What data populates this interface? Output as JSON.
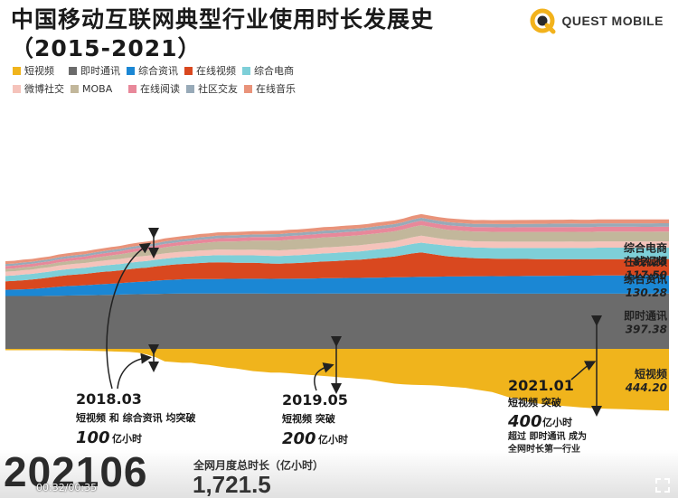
{
  "title": {
    "line1": "中国移动互联网典型行业使用时长发展史",
    "line2": "（2015-2021）"
  },
  "brand": {
    "name": "QUEST MOBILE",
    "color": "#f2b21c"
  },
  "legend": [
    {
      "label": "短视频",
      "color": "#f0b41c"
    },
    {
      "label": "即时通讯",
      "color": "#6b6b6b"
    },
    {
      "label": "综合资讯",
      "color": "#1b87d4"
    },
    {
      "label": "在线视频",
      "color": "#d9481f"
    },
    {
      "label": "综合电商",
      "color": "#7ecfd8"
    },
    {
      "label": "微博社交",
      "color": "#f5c3bb"
    },
    {
      "label": "MOBA",
      "color": "#c2b79b"
    },
    {
      "label": "在线阅读",
      "color": "#e8889a"
    },
    {
      "label": "社区交友",
      "color": "#98aab8"
    },
    {
      "label": "在线音乐",
      "color": "#e9937a"
    }
  ],
  "chart_data": {
    "type": "area",
    "stacked": true,
    "x": [
      0,
      1,
      2,
      3,
      4,
      5,
      6,
      7,
      8,
      9,
      10,
      11,
      12,
      13,
      14,
      15,
      16,
      17,
      18,
      19,
      20,
      21,
      22,
      23,
      24,
      25,
      26,
      27,
      28,
      29,
      30,
      31,
      32,
      33,
      34,
      35,
      36,
      37,
      38,
      39,
      40,
      41,
      42,
      43,
      44,
      45,
      46,
      47,
      48,
      49,
      50,
      51,
      52,
      53,
      54,
      55,
      56,
      57,
      58,
      59,
      60,
      61,
      62,
      63,
      64,
      65,
      66,
      67,
      68,
      69,
      70,
      71,
      72,
      73,
      74,
      75
    ],
    "series": [
      {
        "name": "短视频",
        "color": "#f0b41c",
        "values": [
          10,
          10,
          10,
          10,
          10,
          10,
          10,
          11,
          12,
          13,
          14,
          16,
          18,
          20,
          22,
          28,
          40,
          60,
          90,
          95,
          100,
          100,
          110,
          115,
          125,
          135,
          140,
          150,
          160,
          165,
          170,
          170,
          175,
          180,
          185,
          190,
          195,
          200,
          205,
          210,
          215,
          220,
          230,
          240,
          250,
          255,
          258,
          260,
          262,
          265,
          270,
          275,
          280,
          290,
          300,
          310,
          330,
          350,
          360,
          380,
          390,
          400,
          405,
          410,
          415,
          420,
          425,
          428,
          430,
          432,
          434,
          436,
          438,
          440,
          442,
          444.2
        ]
      },
      {
        "name": "即时通讯",
        "color": "#6b6b6b",
        "values": [
          380,
          380,
          380,
          380,
          380,
          381,
          382,
          383,
          384,
          385,
          386,
          387,
          388,
          390,
          392,
          393,
          394,
          395,
          396,
          397,
          398,
          398,
          398,
          398,
          398,
          398,
          398,
          398,
          398,
          398,
          397,
          397,
          397,
          397,
          397,
          397,
          398,
          398,
          398,
          398,
          398,
          398,
          398,
          398,
          398,
          398,
          398,
          398,
          398,
          398,
          398,
          398,
          398,
          398,
          398,
          398,
          397,
          397,
          397,
          397,
          397,
          397,
          397,
          397,
          397,
          397,
          397,
          397,
          397,
          397,
          397,
          397,
          397,
          397,
          397.38,
          397.38
        ]
      },
      {
        "name": "综合资讯",
        "color": "#1b87d4",
        "values": [
          45,
          46,
          48,
          50,
          55,
          60,
          65,
          68,
          70,
          72,
          75,
          78,
          80,
          82,
          85,
          88,
          90,
          95,
          98,
          100,
          102,
          103,
          104,
          104,
          104,
          105,
          105,
          106,
          106,
          106,
          106,
          107,
          107,
          108,
          108,
          109,
          110,
          110,
          111,
          112,
          112,
          113,
          114,
          115,
          116,
          117,
          118,
          120,
          120,
          121,
          122,
          122,
          123,
          124,
          124,
          125,
          125,
          126,
          126,
          127,
          127,
          128,
          128,
          128,
          129,
          129,
          129,
          130,
          130,
          130,
          130,
          130,
          130,
          130,
          130.28,
          130.28
        ]
      },
      {
        "name": "在线视频",
        "color": "#d9481f",
        "values": [
          60,
          62,
          65,
          68,
          70,
          72,
          75,
          78,
          80,
          82,
          85,
          88,
          90,
          92,
          95,
          98,
          100,
          102,
          105,
          108,
          110,
          112,
          115,
          118,
          120,
          118,
          116,
          115,
          114,
          112,
          110,
          108,
          110,
          112,
          115,
          118,
          120,
          122,
          125,
          128,
          130,
          135,
          140,
          145,
          150,
          160,
          170,
          175,
          165,
          155,
          145,
          140,
          135,
          130,
          128,
          126,
          125,
          124,
          123,
          122,
          121,
          120,
          120,
          119,
          119,
          118,
          118,
          118,
          118,
          118,
          118,
          118,
          117.5,
          117.5,
          117.5,
          117.5
        ]
      },
      {
        "name": "综合电商",
        "color": "#7ecfd8",
        "values": [
          40,
          40,
          41,
          41,
          42,
          42,
          43,
          43,
          44,
          44,
          45,
          45,
          46,
          46,
          47,
          47,
          48,
          48,
          49,
          49,
          50,
          50,
          51,
          51,
          52,
          52,
          53,
          53,
          54,
          54,
          55,
          55,
          56,
          56,
          57,
          57,
          58,
          58,
          59,
          59,
          60,
          61,
          62,
          63,
          64,
          66,
          68,
          70,
          72,
          74,
          76,
          76,
          76,
          76,
          77,
          77,
          78,
          78,
          79,
          79,
          80,
          80,
          80,
          81,
          81,
          81,
          81,
          82,
          82,
          82,
          82,
          82,
          82.28,
          82.28,
          82.28,
          82.28
        ]
      },
      {
        "name": "微博社交",
        "color": "#f5c3bb",
        "values": [
          30,
          30,
          31,
          31,
          32,
          32,
          33,
          33,
          34,
          34,
          35,
          35,
          36,
          36,
          36,
          37,
          37,
          37,
          38,
          38,
          38,
          39,
          39,
          39,
          40,
          40,
          40,
          40,
          41,
          41,
          41,
          41,
          42,
          42,
          42,
          42,
          43,
          43,
          43,
          43,
          44,
          44,
          44,
          44,
          45,
          46,
          48,
          50,
          48,
          46,
          45,
          45,
          45,
          45,
          45,
          45,
          45,
          45,
          45,
          45,
          45,
          45,
          45,
          45,
          45,
          45,
          45,
          45,
          45,
          45,
          45,
          45,
          45,
          45,
          45,
          45
        ]
      },
      {
        "name": "MOBA",
        "color": "#c2b79b",
        "values": [
          20,
          20,
          21,
          21,
          22,
          22,
          23,
          24,
          25,
          26,
          28,
          30,
          32,
          34,
          36,
          38,
          40,
          42,
          44,
          46,
          48,
          50,
          52,
          54,
          56,
          58,
          60,
          62,
          64,
          66,
          68,
          70,
          72,
          72,
          72,
          72,
          72,
          72,
          72,
          72,
          72,
          72,
          72,
          72,
          72,
          72,
          74,
          76,
          74,
          72,
          70,
          70,
          70,
          70,
          70,
          70,
          70,
          70,
          70,
          70,
          70,
          70,
          70,
          70,
          70,
          70,
          70,
          70,
          70,
          70,
          70,
          70,
          70,
          70,
          70,
          70
        ]
      },
      {
        "name": "在线阅读",
        "color": "#e8889a",
        "values": [
          20,
          20,
          20,
          20,
          20,
          20,
          21,
          21,
          21,
          21,
          22,
          22,
          22,
          22,
          23,
          23,
          23,
          23,
          24,
          24,
          24,
          24,
          25,
          25,
          25,
          25,
          26,
          26,
          26,
          26,
          27,
          27,
          27,
          27,
          28,
          28,
          28,
          28,
          29,
          29,
          29,
          29,
          30,
          30,
          30,
          30,
          31,
          31,
          31,
          31,
          32,
          32,
          32,
          32,
          33,
          33,
          33,
          33,
          34,
          34,
          34,
          34,
          35,
          35,
          35,
          35,
          35,
          35,
          35,
          35,
          35,
          35,
          35,
          35,
          35,
          35
        ]
      },
      {
        "name": "社区交友",
        "color": "#98aab8",
        "values": [
          15,
          15,
          15,
          15,
          15,
          15,
          16,
          16,
          16,
          16,
          16,
          16,
          17,
          17,
          17,
          17,
          17,
          17,
          18,
          18,
          18,
          18,
          18,
          18,
          19,
          19,
          19,
          19,
          19,
          19,
          20,
          20,
          20,
          20,
          20,
          20,
          21,
          21,
          21,
          21,
          21,
          21,
          22,
          22,
          22,
          22,
          22,
          22,
          23,
          23,
          23,
          23,
          23,
          23,
          24,
          24,
          24,
          24,
          24,
          24,
          25,
          25,
          25,
          25,
          25,
          25,
          25,
          25,
          25,
          25,
          25,
          25,
          25,
          25,
          25,
          25
        ]
      },
      {
        "name": "在线音乐",
        "color": "#e9937a",
        "values": [
          20,
          20,
          20,
          20,
          20,
          20,
          20,
          21,
          21,
          21,
          21,
          21,
          21,
          21,
          22,
          22,
          22,
          22,
          22,
          22,
          22,
          23,
          23,
          23,
          23,
          23,
          23,
          23,
          24,
          24,
          24,
          24,
          24,
          24,
          24,
          25,
          25,
          25,
          25,
          25,
          25,
          25,
          26,
          26,
          26,
          26,
          26,
          26,
          26,
          27,
          27,
          27,
          27,
          27,
          27,
          27,
          28,
          28,
          28,
          28,
          28,
          28,
          28,
          28,
          28,
          28,
          28,
          28,
          28,
          28,
          28,
          28,
          28,
          28,
          28,
          28
        ]
      }
    ],
    "end_labels": [
      {
        "name": "综合电商",
        "value": "82.28"
      },
      {
        "name": "在线视频",
        "value": "117.50"
      },
      {
        "name": "综合资讯",
        "value": "130.28"
      },
      {
        "name": "即时通讯",
        "value": "397.38"
      },
      {
        "name": "短视频",
        "value": "444.20"
      }
    ],
    "annotations": [
      {
        "date": "2018.03",
        "text": "短视频 和 综合资讯 均突破",
        "value": "100",
        "unit": "亿小时"
      },
      {
        "date": "2019.05",
        "text": "短视频 突破",
        "value": "200",
        "unit": "亿小时"
      },
      {
        "date": "2021.01",
        "text": "短视频 突破",
        "value": "400",
        "unit": "亿小时",
        "note1": "超过 即时通讯 成为",
        "note2": "全网时长第一行业"
      }
    ]
  },
  "footer": {
    "current_period": "202106",
    "total_label": "全网月度总时长（亿小时）",
    "total_value": "1,721.5"
  },
  "player": {
    "time": "00:32/00:35"
  }
}
